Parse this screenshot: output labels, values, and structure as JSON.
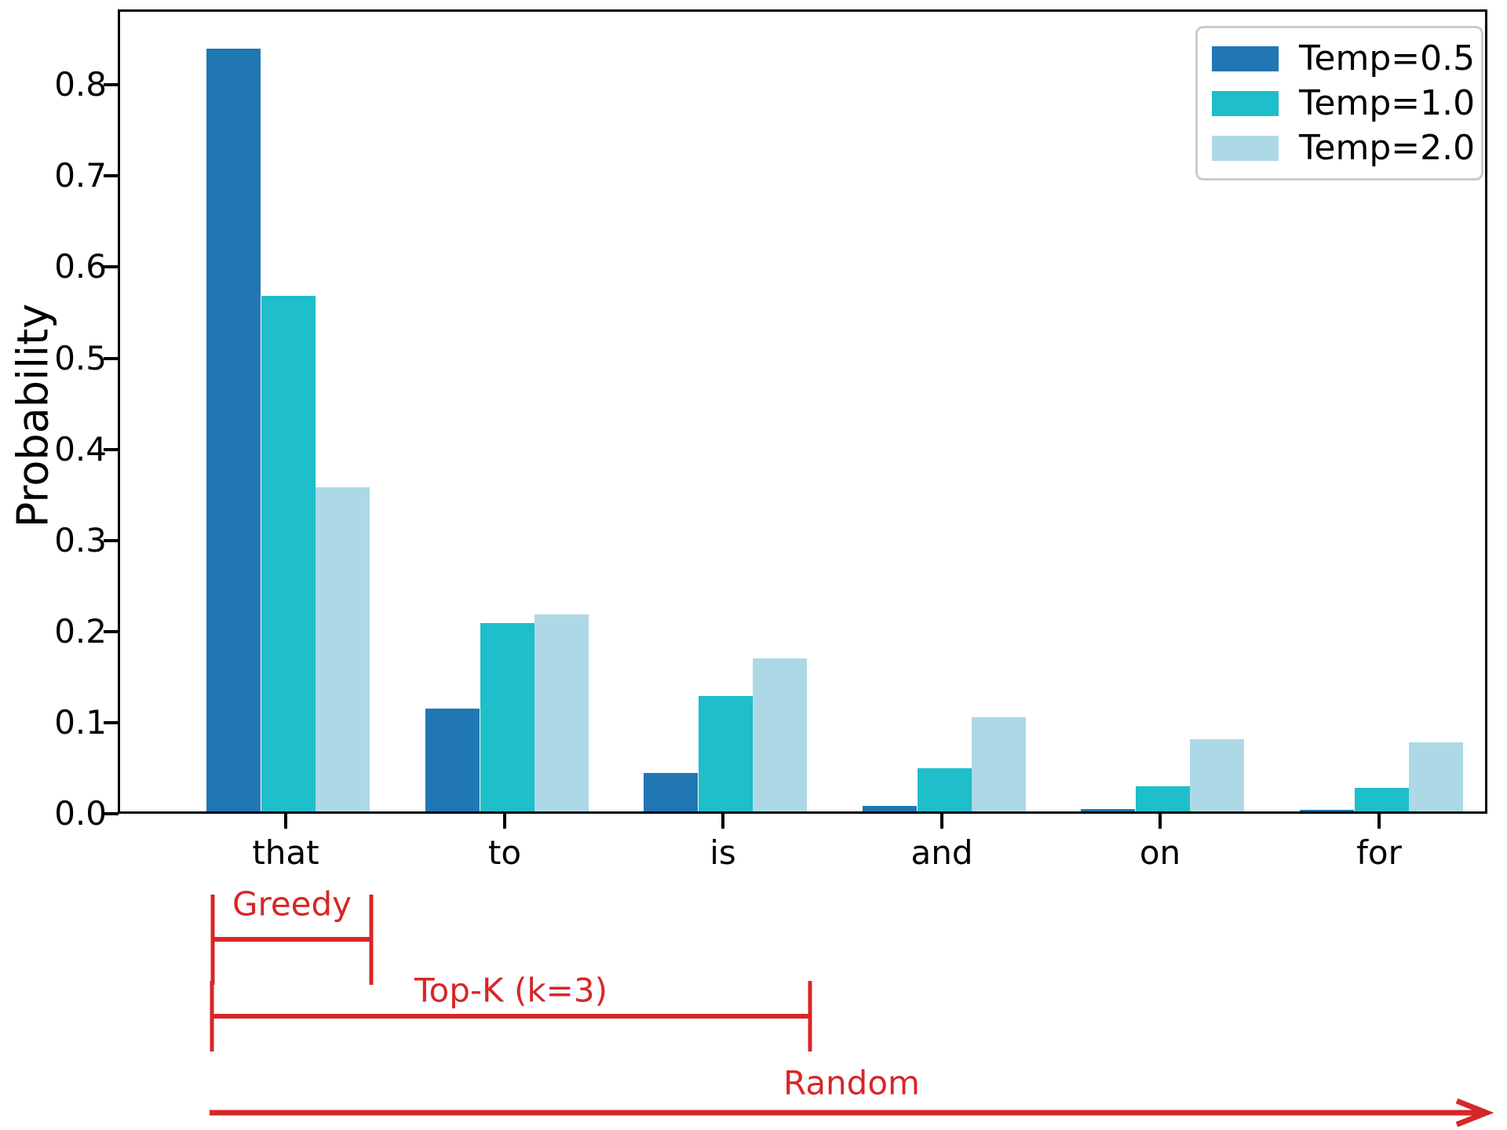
{
  "figure": {
    "background": "#ffffff",
    "spine_color": "#000000"
  },
  "chart_data": {
    "type": "bar",
    "title": "",
    "xlabel": "",
    "ylabel": "Probability",
    "categories": [
      "that",
      "to",
      "is",
      "and",
      "on",
      "for"
    ],
    "series": [
      {
        "name": "Temp=0.5",
        "color": "#2077b4",
        "values": [
          0.837,
          0.113,
          0.042,
          0.006,
          0.003,
          0.002
        ]
      },
      {
        "name": "Temp=1.0",
        "color": "#1ebeca",
        "values": [
          0.566,
          0.207,
          0.127,
          0.047,
          0.028,
          0.026
        ]
      },
      {
        "name": "Temp=2.0",
        "color": "#add8e6",
        "values": [
          0.356,
          0.216,
          0.168,
          0.103,
          0.079,
          0.076
        ]
      }
    ],
    "ylim": [
      0.0,
      0.885
    ],
    "yticks": [
      0.0,
      0.1,
      0.2,
      0.3,
      0.4,
      0.5,
      0.6,
      0.7,
      0.8
    ],
    "ytick_labels": [
      "0.0",
      "0.1",
      "0.2",
      "0.3",
      "0.4",
      "0.5",
      "0.6",
      "0.7",
      "0.8"
    ],
    "grid": false,
    "legend_position": "upper right"
  },
  "legend": {
    "items": [
      {
        "label": "Temp=0.5",
        "color": "#2077b4"
      },
      {
        "label": "Temp=1.0",
        "color": "#1ebeca"
      },
      {
        "label": "Temp=2.0",
        "color": "#add8e6"
      }
    ]
  },
  "annotations": {
    "color": "#d62728",
    "greedy": {
      "label": "Greedy",
      "span_categories": [
        "that"
      ]
    },
    "top_k": {
      "label": "Top-K (k=3)",
      "span_categories": [
        "that",
        "to",
        "is"
      ]
    },
    "random": {
      "label": "Random",
      "span_categories": [
        "that",
        "to",
        "is",
        "and",
        "on",
        "for"
      ]
    }
  }
}
